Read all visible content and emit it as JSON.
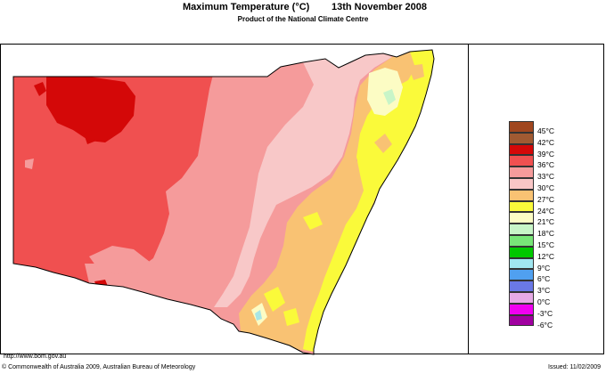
{
  "header": {
    "title": "Maximum Temperature (°C)",
    "date": "13th November 2008",
    "subtitle": "Product of the National Climate Centre"
  },
  "map": {
    "region": "New South Wales",
    "colors": {
      "c42": "#cc3333",
      "c39": "#d40808",
      "c36": "#f05050",
      "c33": "#f59b9b",
      "c30": "#f8c8c8",
      "c27": "#f9c273",
      "c24": "#fafa3a",
      "c21": "#fcfcc4",
      "c18": "#c8f5c8",
      "c9": "#a8e6e6"
    }
  },
  "legend": {
    "items": [
      {
        "label": "45°C",
        "color": "#a0461e"
      },
      {
        "label": "42°C",
        "color": "#a05a32"
      },
      {
        "label": "39°C",
        "color": "#d40808"
      },
      {
        "label": "36°C",
        "color": "#f05050"
      },
      {
        "label": "33°C",
        "color": "#f59b9b"
      },
      {
        "label": "30°C",
        "color": "#f9c6c6"
      },
      {
        "label": "27°C",
        "color": "#f9c273"
      },
      {
        "label": "24°C",
        "color": "#fafa3a"
      },
      {
        "label": "21°C",
        "color": "#fcfcc4"
      },
      {
        "label": "18°C",
        "color": "#c8f5c8"
      },
      {
        "label": "15°C",
        "color": "#78e678"
      },
      {
        "label": "12°C",
        "color": "#00c800"
      },
      {
        "label": "9°C",
        "color": "#a0e6f0"
      },
      {
        "label": "6°C",
        "color": "#50a0f0"
      },
      {
        "label": "3°C",
        "color": "#6a78e6"
      },
      {
        "label": "0°C",
        "color": "#e6aae6"
      },
      {
        "label": "-3°C",
        "color": "#f000f0"
      },
      {
        "label": "-6°C",
        "color": "#a000a0"
      }
    ]
  },
  "footer": {
    "url": "http://www.bom.gov.au",
    "copyright": "© Commonwealth of Australia 2009, Australian Bureau of Meteorology",
    "issued": "Issued: 11/02/2009"
  }
}
